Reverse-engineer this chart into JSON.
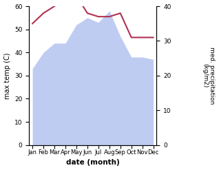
{
  "months": [
    "Jan",
    "Feb",
    "Mar",
    "Apr",
    "May",
    "Jun",
    "Jul",
    "Aug",
    "Sep",
    "Oct",
    "Nov",
    "Dec"
  ],
  "max_temp": [
    33,
    40,
    44,
    44,
    52,
    55,
    53,
    58,
    47,
    38,
    38,
    37
  ],
  "precipitation": [
    35,
    38,
    40,
    42,
    43,
    38,
    37,
    37,
    38,
    31,
    31,
    31
  ],
  "temp_color": "#a04050",
  "precip_color": "#b03050",
  "fill_color": "#aabbee",
  "fill_alpha": 0.75,
  "ylabel_left": "max temp (C)",
  "ylabel_right": "med. precipitation\n(kg/m2)",
  "xlabel": "date (month)",
  "ylim_left": [
    0,
    60
  ],
  "ylim_right": [
    0,
    40
  ],
  "yticks_left": [
    0,
    10,
    20,
    30,
    40,
    50,
    60
  ],
  "yticks_right": [
    0,
    10,
    20,
    30,
    40
  ],
  "background_color": "#ffffff"
}
